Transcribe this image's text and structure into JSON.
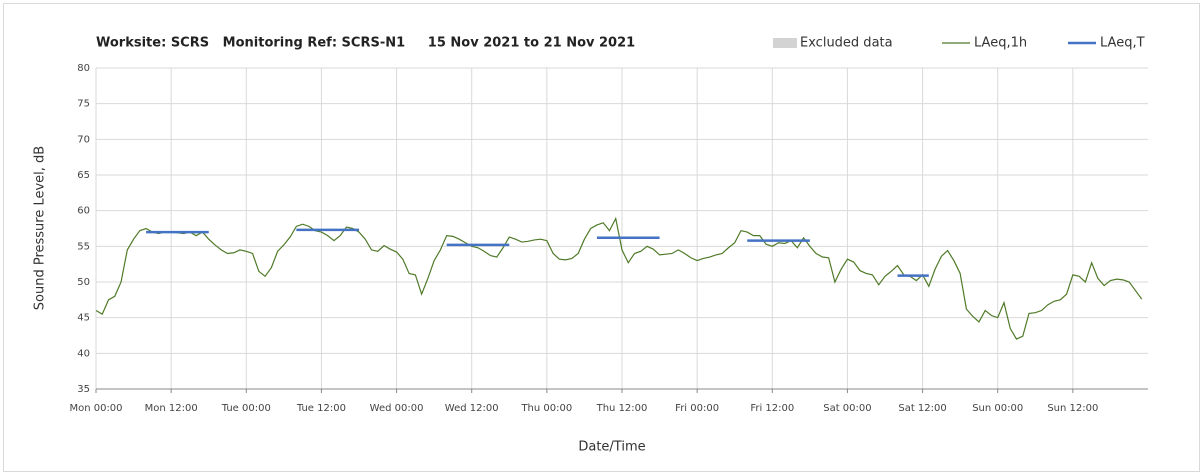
{
  "chart_data": {
    "type": "line",
    "title": "Worksite: SCRS   Monitoring Ref: SCRS-N1     15 Nov 2021 to 21 Nov 2021",
    "x_label": "Date/Time",
    "y_label": "Sound Pressure Level, dB",
    "xlim": [
      0,
      168
    ],
    "ylim": [
      35,
      80
    ],
    "xticks": [
      {
        "value": 0,
        "label": "Mon 00:00"
      },
      {
        "value": 12,
        "label": "Mon 12:00"
      },
      {
        "value": 24,
        "label": "Tue 00:00"
      },
      {
        "value": 36,
        "label": "Tue 12:00"
      },
      {
        "value": 48,
        "label": "Wed 00:00"
      },
      {
        "value": 60,
        "label": "Wed 12:00"
      },
      {
        "value": 72,
        "label": "Thu 00:00"
      },
      {
        "value": 84,
        "label": "Thu 12:00"
      },
      {
        "value": 96,
        "label": "Fri 00:00"
      },
      {
        "value": 108,
        "label": "Fri 12:00"
      },
      {
        "value": 120,
        "label": "Sat 00:00"
      },
      {
        "value": 132,
        "label": "Sat 12:00"
      },
      {
        "value": 144,
        "label": "Sun 00:00"
      },
      {
        "value": 156,
        "label": "Sun 12:00"
      }
    ],
    "yticks": [
      35,
      40,
      45,
      50,
      55,
      60,
      65,
      70,
      75,
      80
    ],
    "grid": true,
    "legend": "top-right",
    "series": [
      {
        "name": "Excluded data",
        "color": "#d3d3d3",
        "values": []
      },
      {
        "name": "LAeq,1h",
        "color": "#4f7a28",
        "x": [
          0,
          1,
          2,
          3,
          4,
          5,
          6,
          7,
          8,
          9,
          10,
          11,
          12,
          13,
          14,
          15,
          16,
          17,
          18,
          19,
          20,
          21,
          22,
          23,
          24,
          25,
          26,
          27,
          28,
          29,
          30,
          31,
          32,
          33,
          34,
          35,
          36,
          37,
          38,
          39,
          40,
          41,
          42,
          43,
          44,
          45,
          46,
          47,
          48,
          49,
          50,
          51,
          52,
          53,
          54,
          55,
          56,
          57,
          58,
          59,
          60,
          61,
          62,
          63,
          64,
          65,
          66,
          67,
          68,
          69,
          70,
          71,
          72,
          73,
          74,
          75,
          76,
          77,
          78,
          79,
          80,
          81,
          82,
          83,
          84,
          85,
          86,
          87,
          88,
          89,
          90,
          91,
          92,
          93,
          94,
          95,
          96,
          97,
          98,
          99,
          100,
          101,
          102,
          103,
          104,
          105,
          106,
          107,
          108,
          109,
          110,
          111,
          112,
          113,
          114,
          115,
          116,
          117,
          118,
          119,
          120,
          121,
          122,
          123,
          124,
          125,
          126,
          127,
          128,
          129,
          130,
          131,
          132,
          133,
          134,
          135,
          136,
          137,
          138,
          139,
          140,
          141,
          142,
          143,
          144,
          145,
          146,
          147,
          148,
          149,
          150,
          151,
          152,
          153,
          154,
          155,
          156,
          157,
          158,
          159,
          160,
          161,
          162,
          163,
          164,
          165,
          166,
          167
        ],
        "values": [
          46.0,
          45.5,
          47.5,
          48.0,
          50.0,
          54.5,
          56.0,
          57.2,
          57.5,
          57.0,
          56.8,
          57.0,
          57.0,
          56.9,
          56.8,
          57.0,
          56.5,
          57.0,
          56.0,
          55.2,
          54.5,
          54.0,
          54.1,
          54.5,
          54.3,
          54.0,
          51.5,
          50.8,
          52.0,
          54.3,
          55.2,
          56.3,
          57.8,
          58.1,
          57.8,
          57.2,
          57.0,
          56.5,
          55.8,
          56.5,
          57.7,
          57.5,
          57.0,
          56.0,
          54.5,
          54.3,
          55.1,
          54.6,
          54.2,
          53.2,
          51.2,
          51.0,
          48.3,
          50.5,
          53.0,
          54.5,
          56.5,
          56.4,
          56.0,
          55.5,
          55.0,
          54.8,
          54.3,
          53.7,
          53.5,
          54.8,
          56.3,
          56.0,
          55.6,
          55.7,
          55.9,
          56.0,
          55.8,
          54.0,
          53.2,
          53.1,
          53.3,
          54.0,
          56.0,
          57.5,
          58.0,
          58.3,
          57.2,
          58.9,
          54.5,
          52.7,
          54.0,
          54.3,
          55.0,
          54.6,
          53.8,
          53.9,
          54.0,
          54.5,
          54.0,
          53.4,
          53.0,
          53.3,
          53.5,
          53.8,
          54.0,
          54.8,
          55.5,
          57.2,
          57.0,
          56.5,
          56.5,
          55.3,
          55.0,
          55.5,
          55.4,
          55.8,
          54.8,
          56.2,
          55.0,
          54.0,
          53.5,
          53.4,
          50.0,
          51.8,
          53.2,
          52.8,
          51.6,
          51.2,
          51.0,
          49.6,
          50.8,
          51.5,
          52.3,
          51.0,
          50.8,
          50.2,
          51.0,
          49.4,
          51.8,
          53.6,
          54.4,
          53.0,
          51.2,
          46.2,
          45.2,
          44.4,
          46.0,
          45.3,
          45.0,
          47.1,
          43.5,
          42.0,
          42.4,
          45.6,
          45.7,
          46.0,
          46.8,
          47.3,
          47.5,
          48.3,
          51.0,
          50.8,
          50.0,
          52.7,
          50.5,
          49.5,
          50.2,
          50.4,
          50.3,
          50.0,
          48.8,
          47.6
        ]
      },
      {
        "name": "LAeq,T",
        "color": "#4472c4",
        "segments": [
          {
            "x": [
              8,
              18
            ],
            "value": 57.0
          },
          {
            "x": [
              32,
              42
            ],
            "value": 57.3
          },
          {
            "x": [
              56,
              66
            ],
            "value": 55.2
          },
          {
            "x": [
              80,
              90
            ],
            "value": 56.2
          },
          {
            "x": [
              104,
              114
            ],
            "value": 55.8
          },
          {
            "x": [
              128,
              133
            ],
            "value": 50.9
          }
        ]
      }
    ]
  }
}
